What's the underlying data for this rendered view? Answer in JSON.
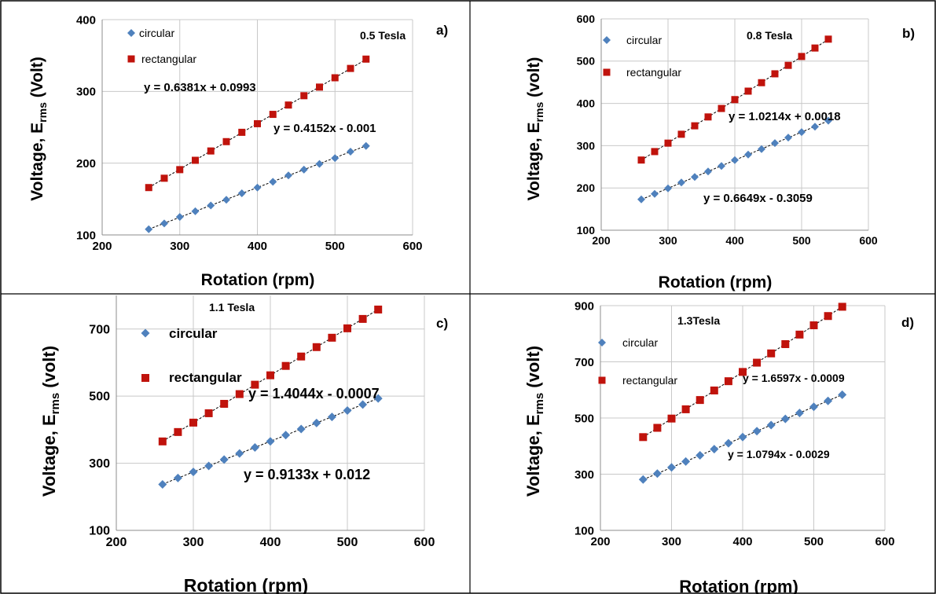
{
  "colors": {
    "circular": "#4f81bd",
    "rectangular": "#c0130c",
    "gridline": "#c8c8c8",
    "trendline": "#000000",
    "border": "#000000"
  },
  "chart_data": [
    {
      "type": "scatter",
      "panel": "a)",
      "annotation": "0.5 Tesla",
      "xlabel": "Rotation (rpm)",
      "ylabel": "Voltage, E",
      "ylabel_sub": "rms",
      "ylabel_tail": " (Volt)",
      "xlim": [
        200,
        600
      ],
      "ylim": [
        100,
        400
      ],
      "xticks": [
        200,
        300,
        400,
        500,
        600
      ],
      "yticks": [
        100,
        200,
        300,
        400
      ],
      "grid": "major",
      "legend": "top-left",
      "series": [
        {
          "name": "circular",
          "marker": "diamond",
          "x": [
            260,
            280,
            300,
            320,
            340,
            360,
            380,
            400,
            420,
            440,
            460,
            480,
            500,
            520,
            540
          ],
          "y": [
            108,
            116,
            125,
            133,
            141,
            149,
            158,
            166,
            174,
            183,
            191,
            199,
            207,
            216,
            224
          ],
          "trendline": "y = 0.4152x - 0.001",
          "fit": [
            0.4152,
            -0.001
          ]
        },
        {
          "name": "rectangular",
          "marker": "square",
          "x": [
            260,
            280,
            300,
            320,
            340,
            360,
            380,
            400,
            420,
            440,
            460,
            480,
            500,
            520,
            540
          ],
          "y": [
            166,
            179,
            191,
            204,
            217,
            230,
            243,
            255,
            268,
            281,
            294,
            306,
            319,
            332,
            345
          ],
          "trendline": "y = 0.6381x + 0.0993",
          "fit": [
            0.6381,
            0.0993
          ]
        }
      ]
    },
    {
      "type": "scatter",
      "panel": "b)",
      "annotation": "0.8 Tesla",
      "xlabel": "Rotation (rpm)",
      "ylabel": "Voltage,  E",
      "ylabel_sub": "rms",
      "ylabel_tail": "  (volt)",
      "xlim": [
        200,
        600
      ],
      "ylim": [
        100,
        600
      ],
      "xticks": [
        200,
        300,
        400,
        500,
        600
      ],
      "yticks": [
        100,
        200,
        300,
        400,
        500,
        600
      ],
      "grid": "major",
      "legend": "top-left",
      "series": [
        {
          "name": "circular",
          "marker": "diamond",
          "x": [
            260,
            280,
            300,
            320,
            340,
            360,
            380,
            400,
            420,
            440,
            460,
            480,
            500,
            520,
            540
          ],
          "y": [
            173,
            186,
            199,
            213,
            226,
            239,
            252,
            266,
            279,
            292,
            306,
            319,
            332,
            345,
            359
          ],
          "trendline": "y = 0.6649x - 0.3059",
          "fit": [
            0.6649,
            -0.3059
          ]
        },
        {
          "name": "rectangular",
          "marker": "square",
          "x": [
            260,
            280,
            300,
            320,
            340,
            360,
            380,
            400,
            420,
            440,
            460,
            480,
            500,
            520,
            540
          ],
          "y": [
            266,
            286,
            306,
            327,
            347,
            368,
            388,
            409,
            429,
            449,
            470,
            490,
            511,
            531,
            552
          ],
          "trendline": "y = 1.0214x + 0.0018",
          "fit": [
            1.0214,
            0.0018
          ]
        }
      ]
    },
    {
      "type": "scatter",
      "panel": "c)",
      "annotation": "1.1 Tesla",
      "xlabel": "Rotation (rpm)",
      "ylabel": "Voltage,  E",
      "ylabel_sub": "rms",
      "ylabel_tail": "  (volt)",
      "xlim": [
        200,
        600
      ],
      "ylim": [
        100,
        800
      ],
      "xticks": [
        200,
        300,
        400,
        500,
        600
      ],
      "yticks": [
        100,
        300,
        500,
        700
      ],
      "grid": "major",
      "legend": "top-left",
      "series": [
        {
          "name": "circular",
          "marker": "diamond",
          "x": [
            260,
            280,
            300,
            320,
            340,
            360,
            380,
            400,
            420,
            440,
            460,
            480,
            500,
            520,
            540
          ],
          "y": [
            237,
            256,
            274,
            292,
            311,
            329,
            347,
            365,
            384,
            402,
            420,
            438,
            457,
            475,
            493
          ],
          "trendline": "y = 0.9133x + 0.012",
          "fit": [
            0.9133,
            0.012
          ]
        },
        {
          "name": "rectangular",
          "marker": "square",
          "x": [
            260,
            280,
            300,
            320,
            340,
            360,
            380,
            400,
            420,
            440,
            460,
            480,
            500,
            520,
            540
          ],
          "y": [
            365,
            393,
            421,
            449,
            477,
            506,
            534,
            562,
            590,
            618,
            646,
            674,
            702,
            730,
            758
          ],
          "trendline": "y = 1.4044x - 0.0007",
          "fit": [
            1.4044,
            -0.0007
          ]
        }
      ]
    },
    {
      "type": "scatter",
      "panel": "d)",
      "annotation": "1.3Tesla",
      "xlabel": "Rotation (rpm)",
      "ylabel": "Voltage,  E",
      "ylabel_sub": "rms",
      "ylabel_tail": "  (volt)",
      "xlim": [
        200,
        600
      ],
      "ylim": [
        100,
        900
      ],
      "xticks": [
        200,
        300,
        400,
        500,
        600
      ],
      "yticks": [
        100,
        300,
        500,
        700,
        900
      ],
      "grid": "major",
      "legend": "top-left",
      "series": [
        {
          "name": "circular",
          "marker": "diamond",
          "x": [
            260,
            280,
            300,
            320,
            340,
            360,
            380,
            400,
            420,
            440,
            460,
            480,
            500,
            520,
            540
          ],
          "y": [
            281,
            302,
            324,
            345,
            367,
            389,
            410,
            432,
            453,
            475,
            497,
            518,
            540,
            561,
            583
          ],
          "trendline": "y = 1.0794x - 0.0029",
          "fit": [
            1.0794,
            -0.0029
          ]
        },
        {
          "name": "rectangular",
          "marker": "square",
          "x": [
            260,
            280,
            300,
            320,
            340,
            360,
            380,
            400,
            420,
            440,
            460,
            480,
            500,
            520,
            540
          ],
          "y": [
            432,
            465,
            498,
            531,
            564,
            598,
            631,
            664,
            697,
            730,
            763,
            797,
            830,
            863,
            896
          ],
          "trendline": "y = 1.6597x - 0.0009",
          "fit": [
            1.6597,
            -0.0009
          ]
        }
      ]
    }
  ]
}
